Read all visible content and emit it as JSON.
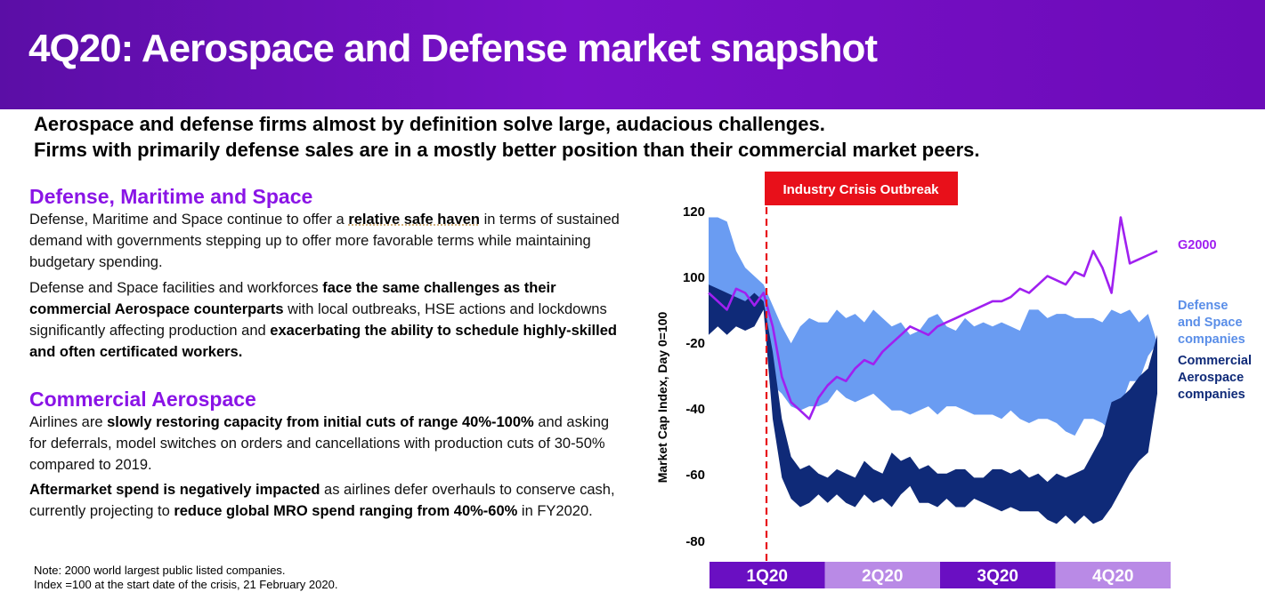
{
  "header": {
    "title": "4Q20: Aerospace and Defense market snapshot"
  },
  "headlines": [
    "Aerospace and defense firms almost by definition solve large, audacious challenges.",
    "Firms with primarily defense sales are in a mostly better position than their commercial market peers."
  ],
  "defense": {
    "title": "Defense, Maritime and Space",
    "p1": {
      "a": "Defense, Maritime and Space continue to offer a ",
      "b": "relative safe haven",
      "c": " in terms of sustained demand with governments stepping up to offer more favorable terms while maintaining budgetary spending."
    },
    "p2": {
      "a": "Defense and Space facilities and workforces ",
      "b": "face the same challenges as their commercial Aerospace counterparts",
      "c": " with local outbreaks, HSE actions and lockdowns significantly affecting production and ",
      "d": "exacerbating the ability to schedule highly-skilled and often certificated workers."
    }
  },
  "commercial": {
    "title": "Commercial Aerospace",
    "p1": {
      "a": "Airlines are ",
      "b": "slowly restoring capacity from initial cuts of range 40%-100%",
      "c": " and asking for deferrals, model switches on orders and cancellations with production cuts of 30-50% compared to 2019."
    },
    "p2": {
      "a": "Aftermarket spend is negatively impacted",
      "b": " as airlines defer overhauls to conserve cash, currently projecting to ",
      "c": "reduce global MRO spend ranging from 40%-60%",
      "d": " in FY2020."
    }
  },
  "notes": [
    "Note: 2000 world largest public listed companies.",
    "Index =100 at the start date of the crisis, 21 February 2020."
  ],
  "colors": {
    "g2000": "#a020f0",
    "defense_band": "#6a9cf2",
    "commercial_band": "#0f2a78",
    "crisis": "#e8101a",
    "q_dark": "#6a0fc2",
    "q_light": "#b98ae6"
  },
  "chart_data": {
    "type": "area",
    "crisis_label": "Industry Crisis Outbreak",
    "ylabel": "Market Cap Index, Day 0=100",
    "y_ticks": [
      "120",
      "100",
      "-20",
      "-40",
      "-60",
      "-80"
    ],
    "quarters": [
      "1Q20",
      "2Q20",
      "3Q20",
      "4Q20"
    ],
    "series": [
      {
        "name": "G2000",
        "type": "line",
        "values": [
          100,
          98,
          96,
          101,
          100,
          97,
          100,
          92,
          80,
          74,
          72,
          70,
          75,
          78,
          80,
          79,
          82,
          84,
          83,
          86,
          88,
          90,
          92,
          91,
          90,
          92,
          93,
          94,
          95,
          96,
          97,
          98,
          98,
          99,
          101,
          100,
          102,
          104,
          103,
          102,
          105,
          104,
          110,
          106,
          100,
          118,
          107,
          108,
          109,
          110
        ]
      },
      {
        "name": "Defense and Space companies",
        "type": "band",
        "upper": [
          118,
          118,
          117,
          110,
          106,
          104,
          102,
          97,
          92,
          88,
          92,
          94,
          93,
          93,
          96,
          94,
          95,
          93,
          96,
          94,
          92,
          93,
          90,
          91,
          94,
          95,
          92,
          91,
          94,
          92,
          93,
          92,
          93,
          92,
          91,
          96,
          96,
          94,
          95,
          95,
          94,
          94,
          94,
          93,
          96,
          95,
          96,
          93,
          95,
          88
        ],
        "lower": [
          90,
          96,
          95,
          98,
          97,
          95,
          96,
          78,
          76,
          73,
          72,
          73,
          73,
          74,
          77,
          75,
          74,
          75,
          76,
          74,
          72,
          72,
          71,
          72,
          73,
          71,
          73,
          73,
          72,
          71,
          71,
          71,
          70,
          72,
          70,
          69,
          70,
          70,
          69,
          67,
          66,
          70,
          70,
          69,
          67,
          73,
          79,
          79,
          85,
          88
        ]
      },
      {
        "name": "Commercial Aerospace companies",
        "type": "band",
        "upper": [
          102,
          101,
          100,
          99,
          98,
          100,
          98,
          86,
          70,
          61,
          58,
          59,
          57,
          56,
          58,
          57,
          56,
          60,
          58,
          57,
          62,
          60,
          61,
          58,
          59,
          57,
          57,
          58,
          58,
          56,
          56,
          58,
          58,
          57,
          58,
          56,
          57,
          55,
          57,
          56,
          57,
          58,
          62,
          66,
          74,
          75,
          77,
          80,
          82,
          90
        ],
        "lower": [
          90,
          92,
          90,
          92,
          91,
          92,
          96,
          70,
          56,
          51,
          49,
          50,
          52,
          50,
          52,
          50,
          49,
          52,
          50,
          51,
          49,
          52,
          54,
          50,
          50,
          49,
          51,
          49,
          49,
          51,
          50,
          49,
          48,
          49,
          48,
          48,
          48,
          46,
          45,
          47,
          45,
          47,
          45,
          46,
          49,
          53,
          57,
          60,
          62,
          76
        ]
      }
    ],
    "legend": [
      "G2000",
      "Defense and Space companies",
      "Commercial Aerospace companies"
    ],
    "legend_lines": {
      "g2000": "G2000",
      "defense": [
        "Defense",
        "and Space",
        "companies"
      ],
      "commercial": [
        "Commercial",
        "Aerospace",
        "companies"
      ]
    }
  }
}
